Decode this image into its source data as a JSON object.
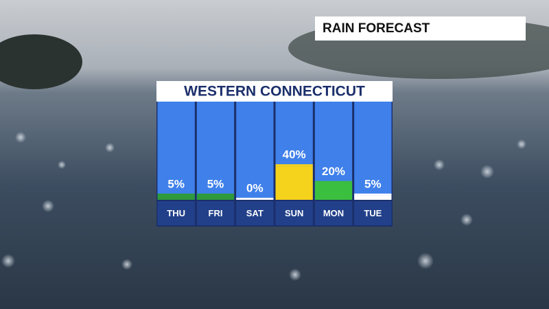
{
  "chart_data": {
    "type": "bar",
    "title": "RAIN FORECAST",
    "subtitle": "WESTERN CONNECTICUT",
    "categories": [
      "THU",
      "FRI",
      "SAT",
      "SUN",
      "MON",
      "TUE"
    ],
    "values": [
      5,
      5,
      0,
      40,
      20,
      5
    ],
    "value_labels": [
      "5%",
      "5%",
      "0%",
      "40%",
      "20%",
      "5%"
    ],
    "colors": [
      "#2e9a3a",
      "#2e9a3a",
      "#ffffff",
      "#f5d21c",
      "#3bbf3f",
      "#ffffff"
    ]
  }
}
